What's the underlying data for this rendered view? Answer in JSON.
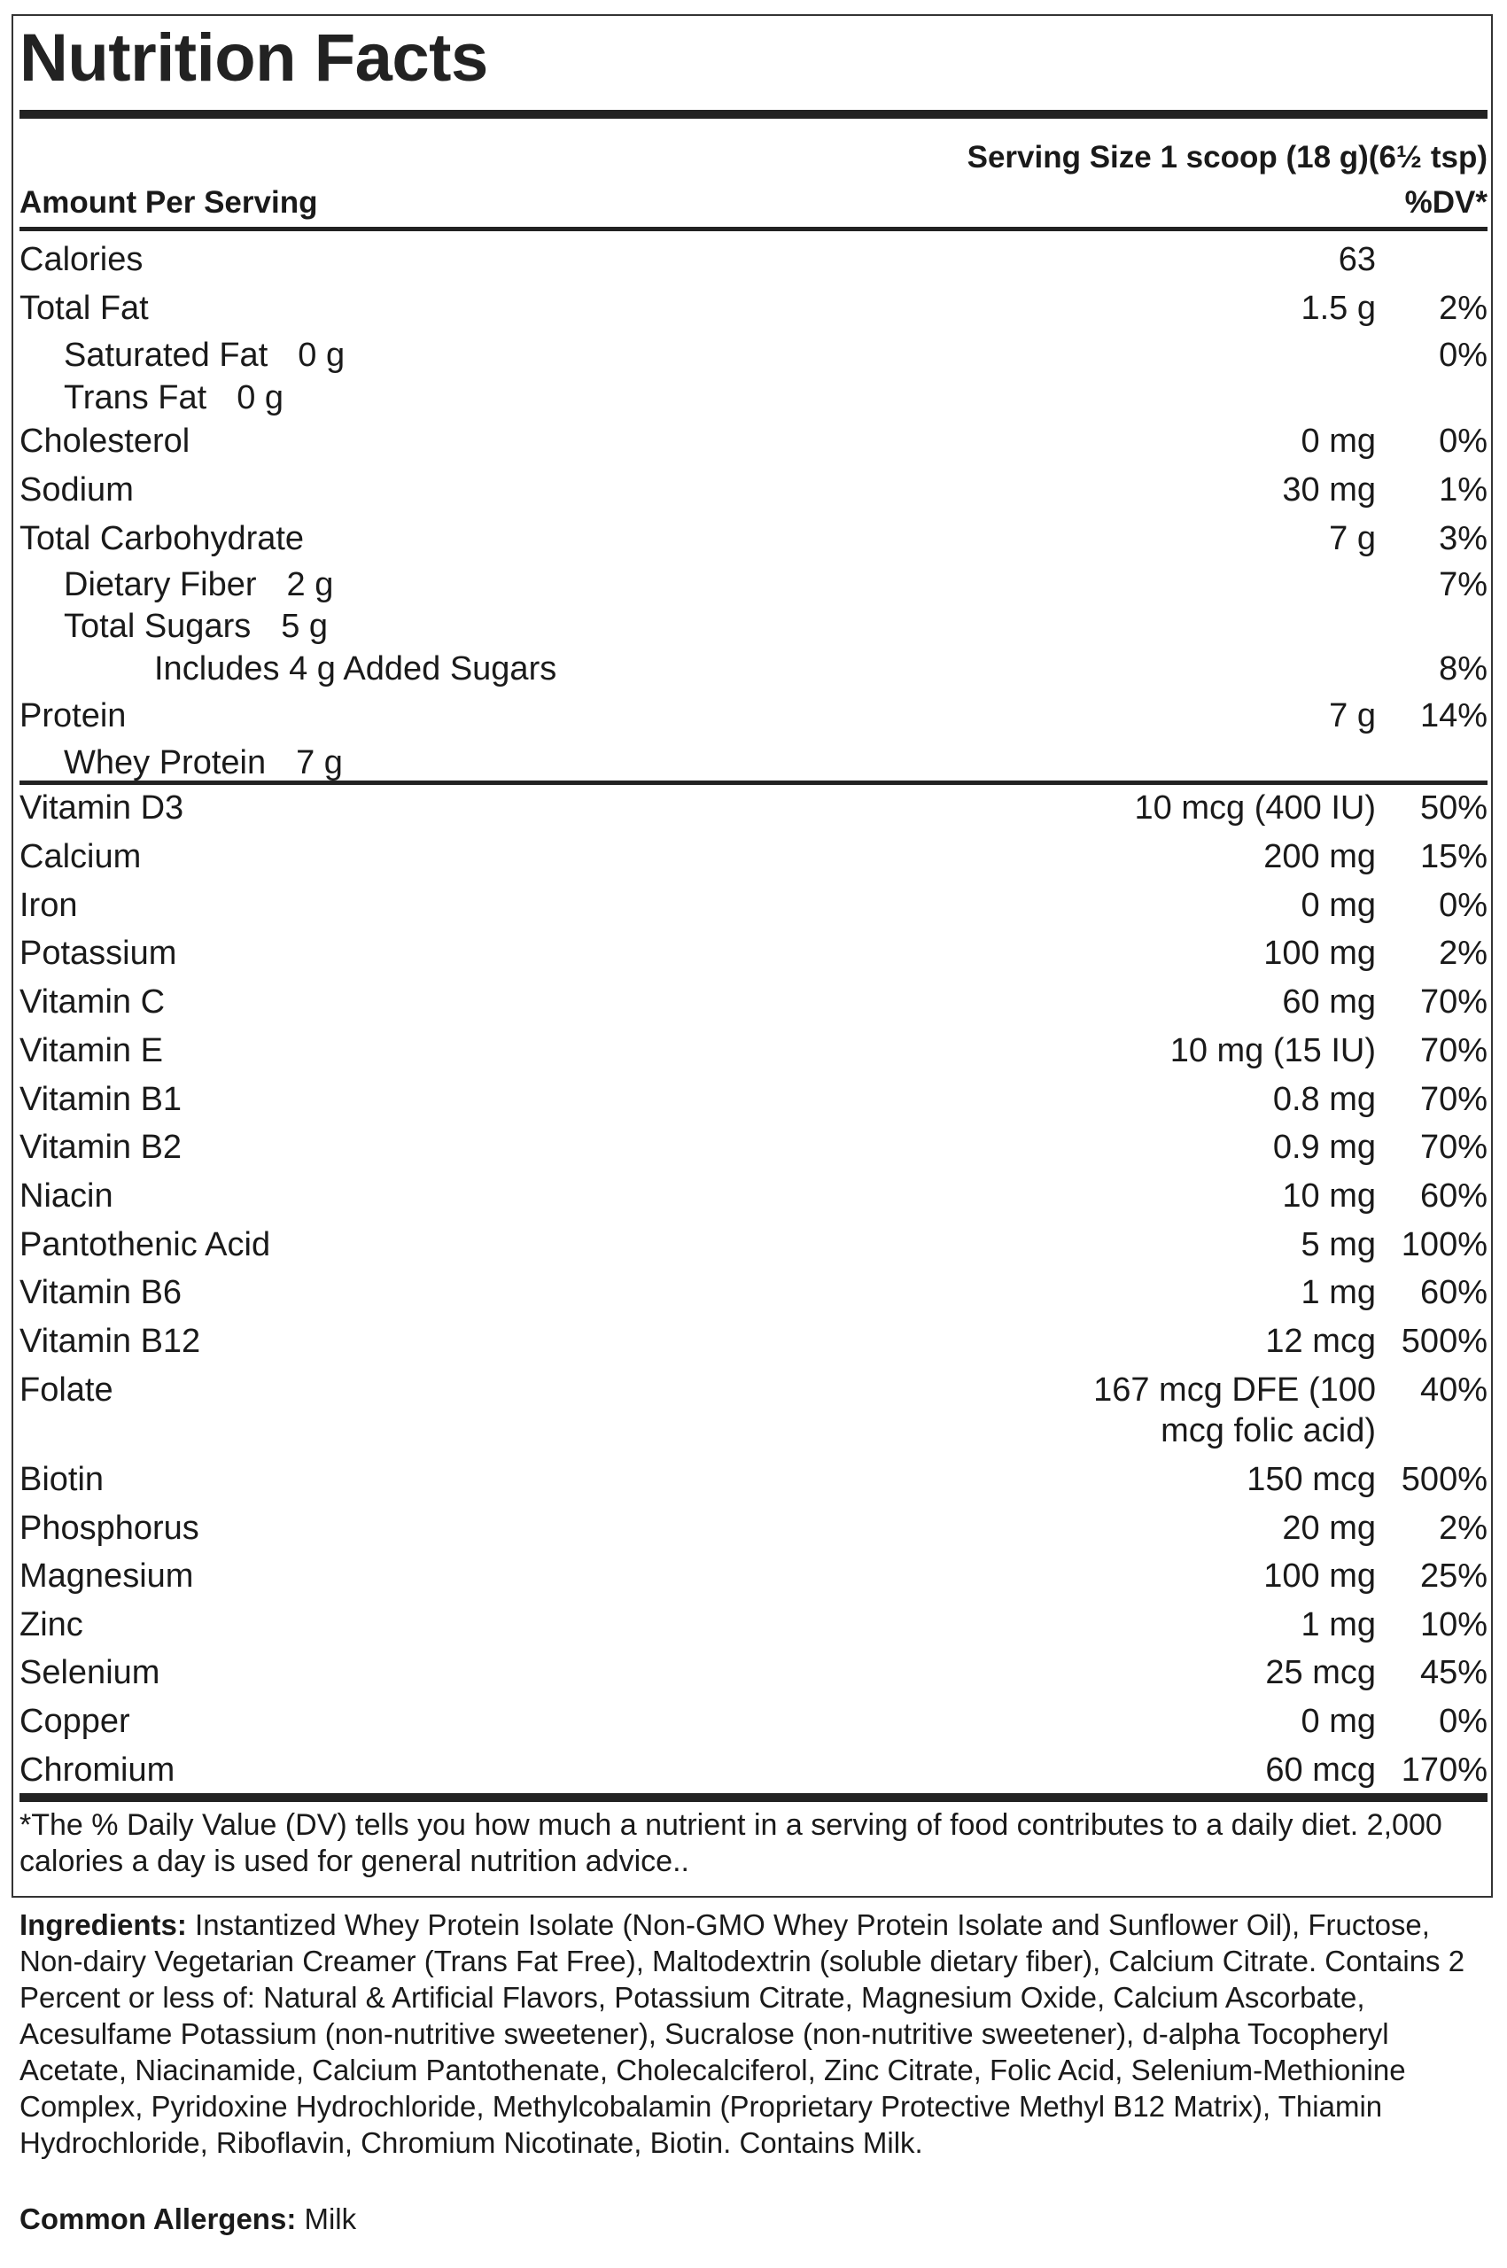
{
  "title": "Nutrition Facts",
  "serving_size": "Serving Size 1 scoop (18 g)(6½ tsp)",
  "amount_per_serving": "Amount Per Serving",
  "dv_header": "%DV*",
  "macros": [
    {
      "name": "Calories",
      "amount": "63",
      "dv": "",
      "indent": 0,
      "inline": false
    },
    {
      "name": "Total Fat",
      "amount": "1.5 g",
      "dv": "2%",
      "indent": 0,
      "inline": false
    },
    {
      "name": "Saturated Fat",
      "amount": "0 g",
      "dv": "0%",
      "indent": 1,
      "inline": true
    },
    {
      "name": "Trans Fat",
      "amount": "0 g",
      "dv": "",
      "indent": 1,
      "inline": true
    },
    {
      "name": "Cholesterol",
      "amount": "0 mg",
      "dv": "0%",
      "indent": 0,
      "inline": false
    },
    {
      "name": "Sodium",
      "amount": "30 mg",
      "dv": "1%",
      "indent": 0,
      "inline": false
    },
    {
      "name": "Total Carbohydrate",
      "amount": "7 g",
      "dv": "3%",
      "indent": 0,
      "inline": false
    },
    {
      "name": "Dietary Fiber",
      "amount": "2 g",
      "dv": "7%",
      "indent": 1,
      "inline": true
    },
    {
      "name": "Total Sugars",
      "amount": "5 g",
      "dv": "",
      "indent": 1,
      "inline": true
    },
    {
      "name": "Includes 4 g Added Sugars",
      "amount": "",
      "dv": "8%",
      "indent": 2,
      "inline": false
    },
    {
      "name": "Protein",
      "amount": "7 g",
      "dv": "14%",
      "indent": 0,
      "inline": false
    },
    {
      "name": "Whey Protein",
      "amount": "7 g",
      "dv": "",
      "indent": 1,
      "inline": true
    }
  ],
  "micros": [
    {
      "name": "Vitamin D3",
      "amount": "10 mcg (400 IU)",
      "dv": "50%"
    },
    {
      "name": "Calcium",
      "amount": "200 mg",
      "dv": "15%"
    },
    {
      "name": "Iron",
      "amount": "0 mg",
      "dv": "0%"
    },
    {
      "name": "Potassium",
      "amount": "100 mg",
      "dv": "2%"
    },
    {
      "name": "Vitamin C",
      "amount": "60 mg",
      "dv": "70%"
    },
    {
      "name": "Vitamin E",
      "amount": "10 mg (15 IU)",
      "dv": "70%"
    },
    {
      "name": "Vitamin B1",
      "amount": "0.8 mg",
      "dv": "70%"
    },
    {
      "name": "Vitamin B2",
      "amount": "0.9 mg",
      "dv": "70%"
    },
    {
      "name": "Niacin",
      "amount": "10 mg",
      "dv": "60%"
    },
    {
      "name": "Pantothenic Acid",
      "amount": "5 mg",
      "dv": "100%"
    },
    {
      "name": "Vitamin B6",
      "amount": "1 mg",
      "dv": "60%"
    },
    {
      "name": "Vitamin B12",
      "amount": "12 mcg",
      "dv": "500%"
    },
    {
      "name": "Folate",
      "amount": "167 mcg DFE (100",
      "amount_line2": "mcg folic acid)",
      "dv": "40%"
    },
    {
      "name": "Biotin",
      "amount": "150 mcg",
      "dv": "500%"
    },
    {
      "name": "Phosphorus",
      "amount": "20 mg",
      "dv": "2%"
    },
    {
      "name": "Magnesium",
      "amount": "100 mg",
      "dv": "25%"
    },
    {
      "name": "Zinc",
      "amount": "1 mg",
      "dv": "10%"
    },
    {
      "name": "Selenium",
      "amount": "25 mcg",
      "dv": "45%"
    },
    {
      "name": "Copper",
      "amount": "0 mg",
      "dv": "0%"
    },
    {
      "name": "Chromium",
      "amount": "60 mcg",
      "dv": "170%"
    }
  ],
  "footnote": "*The % Daily Value (DV) tells you how much a nutrient in a serving of food contributes to a daily diet. 2,000 calories a day is used for general nutrition advice..",
  "ingredients_label": "Ingredients:",
  "ingredients_text": " Instantized Whey Protein Isolate (Non-GMO Whey Protein Isolate and Sunflower Oil), Fructose, Non-dairy Vegetarian Creamer (Trans Fat Free), Maltodextrin (soluble dietary fiber), Calcium Citrate. Contains 2 Percent or less of: Natural & Artificial Flavors, Potassium Citrate, Magnesium Oxide, Calcium Ascorbate, Acesulfame Potassium (non-nutritive sweetener), Sucralose (non-nutritive sweetener), d-alpha Tocopheryl Acetate, Niacinamide, Calcium Pantothenate, Cholecalciferol, Zinc Citrate, Folic Acid, Selenium-Methionine Complex, Pyridoxine Hydrochloride, Methylcobalamin (Proprietary Protective Methyl B12 Matrix), Thiamin Hydrochloride, Riboflavin, Chromium Nicotinate, Biotin. Contains Milk.",
  "allergens_label": "Common Allergens:",
  "allergens_text": " Milk"
}
